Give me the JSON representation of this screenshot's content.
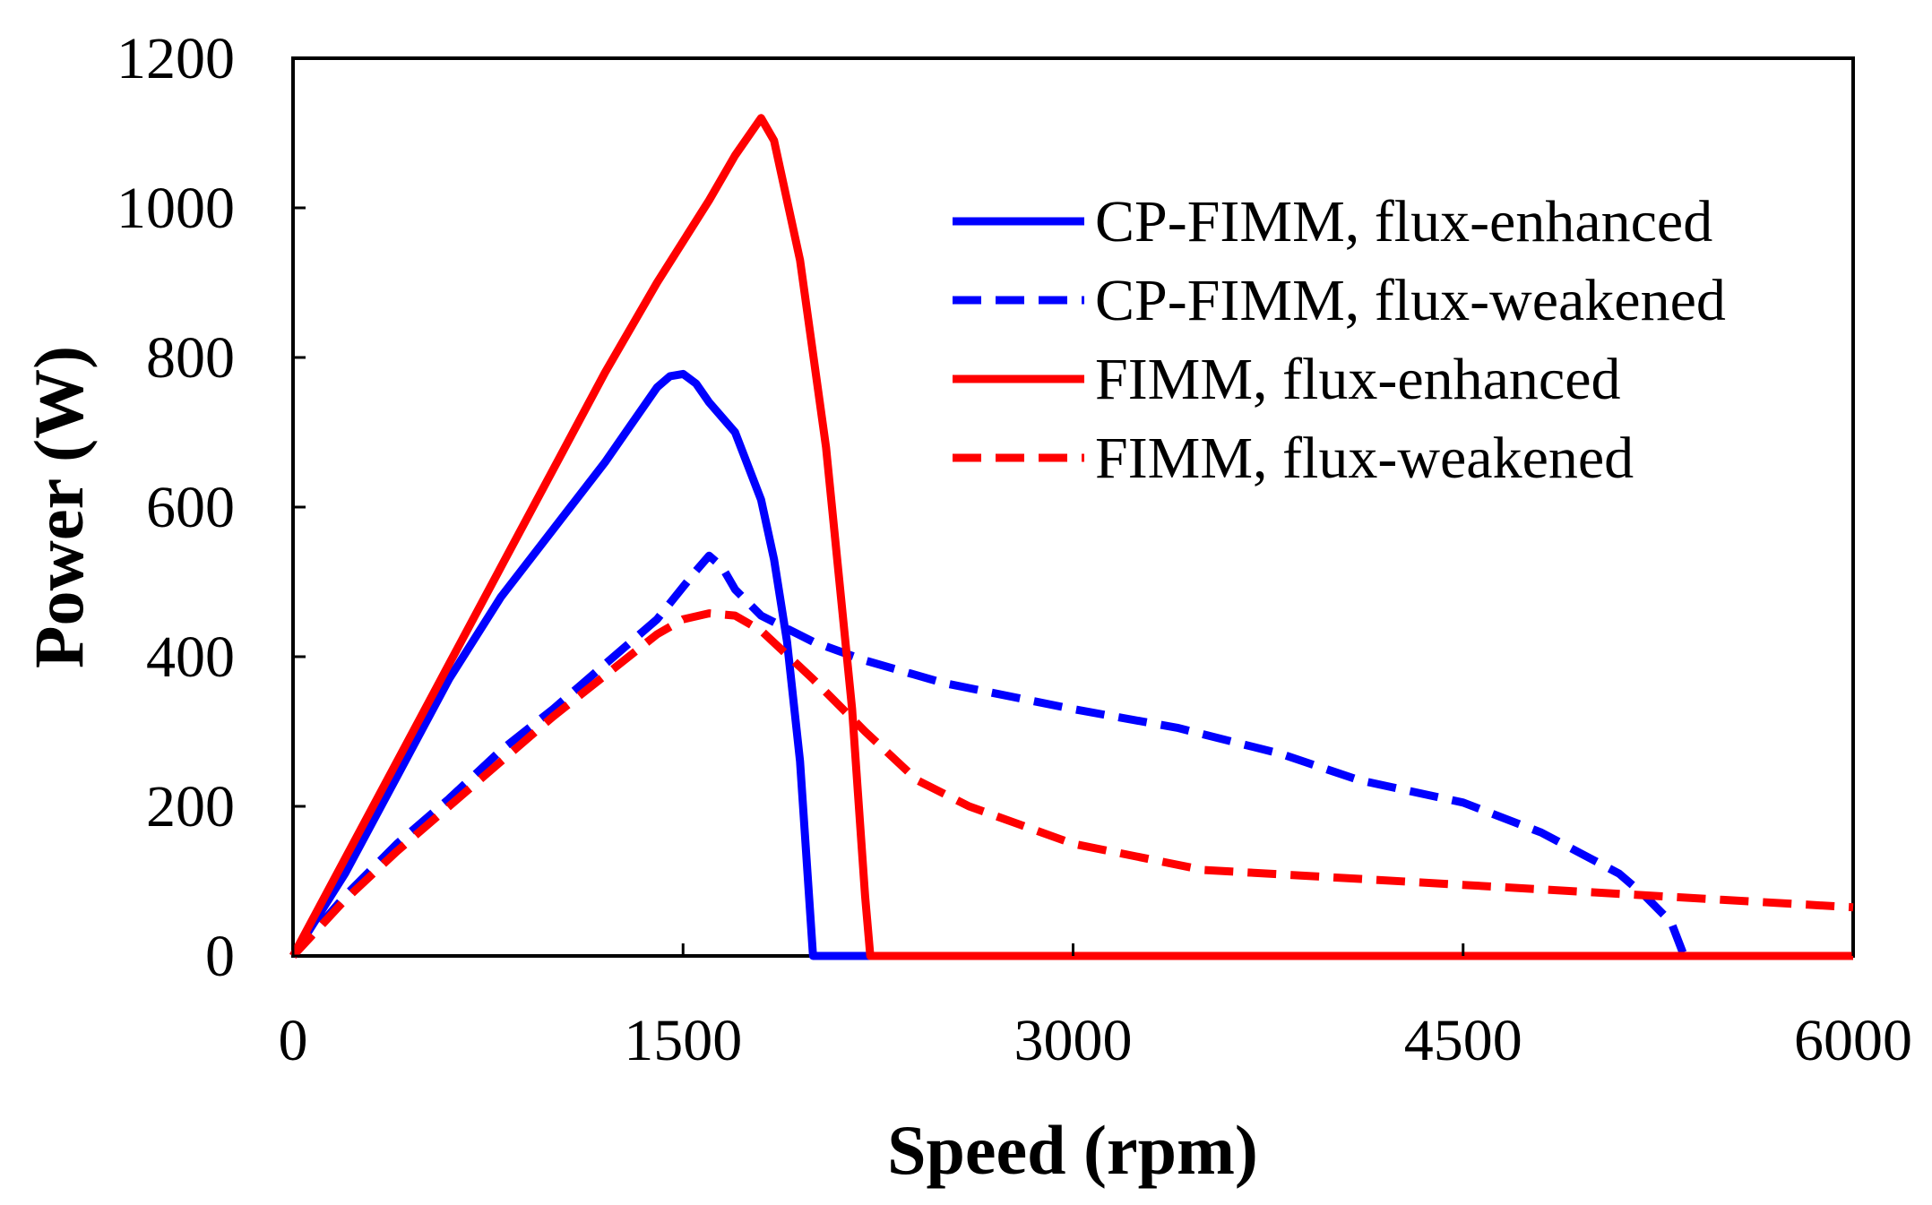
{
  "chart_data": {
    "type": "line",
    "title": "",
    "xlabel": "Speed (rpm)",
    "ylabel": "Power (W)",
    "xlim": [
      0,
      6000
    ],
    "ylim": [
      0,
      1200
    ],
    "xticks": [
      0,
      1500,
      3000,
      4500,
      6000
    ],
    "yticks": [
      0,
      200,
      400,
      600,
      800,
      1000,
      1200
    ],
    "xtick_labels": [
      "0",
      "1500",
      "3000",
      "4500",
      "6000"
    ],
    "ytick_labels": [
      "0",
      "200",
      "400",
      "600",
      "800",
      "1000",
      "1200"
    ],
    "legend_position": "top-right",
    "grid": false,
    "series": [
      {
        "name": "CP-FIMM, flux-enhanced",
        "color": "#0000ff",
        "dash": "solid",
        "x": [
          0,
          200,
          400,
          600,
          800,
          1000,
          1200,
          1300,
          1400,
          1450,
          1500,
          1550,
          1600,
          1700,
          1800,
          1850,
          1900,
          1950,
          2000,
          2200,
          3000,
          6000
        ],
        "y": [
          0,
          110,
          240,
          370,
          480,
          570,
          660,
          710,
          760,
          775,
          778,
          765,
          740,
          700,
          610,
          530,
          420,
          260,
          0,
          0,
          0,
          0
        ]
      },
      {
        "name": "CP-FIMM, flux-weakened",
        "color": "#0000ff",
        "dash": "dashed",
        "x": [
          0,
          200,
          400,
          600,
          800,
          1000,
          1200,
          1400,
          1550,
          1600,
          1650,
          1700,
          1800,
          2000,
          2200,
          2500,
          3000,
          3400,
          3800,
          4100,
          4500,
          4800,
          5100,
          5200,
          5300,
          5350
        ],
        "y": [
          0,
          80,
          150,
          210,
          275,
          330,
          390,
          450,
          515,
          535,
          520,
          490,
          455,
          420,
          395,
          365,
          330,
          305,
          270,
          235,
          205,
          165,
          110,
          80,
          45,
          0
        ]
      },
      {
        "name": "FIMM, flux-enhanced",
        "color": "#ff0000",
        "dash": "solid",
        "x": [
          0,
          200,
          400,
          600,
          800,
          1000,
          1200,
          1400,
          1600,
          1700,
          1800,
          1850,
          1950,
          2050,
          2150,
          2200,
          2220,
          3000,
          6000
        ],
        "y": [
          0,
          130,
          260,
          390,
          520,
          650,
          780,
          900,
          1010,
          1070,
          1120,
          1090,
          930,
          680,
          330,
          80,
          0,
          0,
          0
        ]
      },
      {
        "name": "FIMM, flux-weakened",
        "color": "#ff0000",
        "dash": "dashed",
        "x": [
          0,
          200,
          400,
          600,
          800,
          1000,
          1200,
          1400,
          1500,
          1600,
          1700,
          1800,
          2000,
          2200,
          2400,
          2600,
          3000,
          3500,
          4000,
          4500,
          5000,
          5500,
          6000
        ],
        "y": [
          0,
          75,
          140,
          200,
          260,
          320,
          375,
          430,
          450,
          458,
          455,
          435,
          370,
          300,
          235,
          200,
          150,
          115,
          105,
          95,
          85,
          75,
          65
        ]
      }
    ]
  }
}
